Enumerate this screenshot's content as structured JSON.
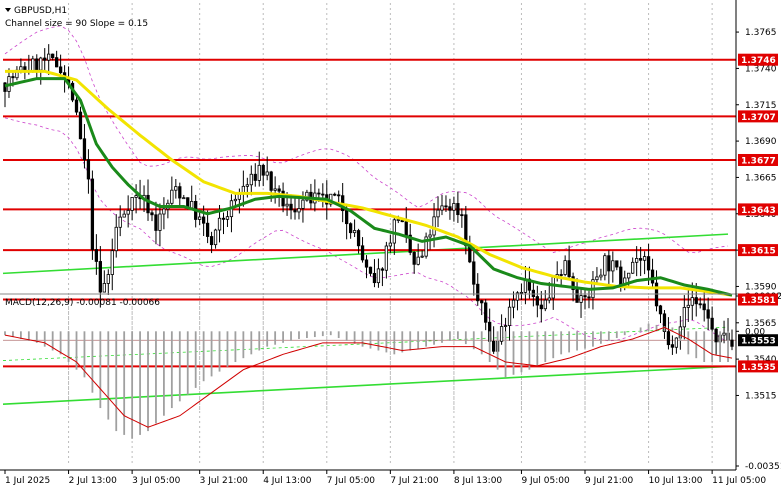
{
  "header": {
    "symbol": "GBPUSD,H1",
    "channel": "Channel size = 90 Slope = 0.15"
  },
  "colors": {
    "level_line": "#e00000",
    "level_label_bg": "#e00000",
    "price_label_bg": "#000000",
    "ma_fast": "#1a8a1a",
    "ma_slow": "#f2e400",
    "channel": "#33dd33",
    "envelope": "#cc44cc",
    "macd_signal": "#d00000",
    "macd_hist": "#a0a0a0",
    "grid": "#bcbcbc"
  },
  "chart_data": [
    {
      "type": "candlestick",
      "title": "GBPUSD,H1",
      "ylim": [
        1.3505,
        1.3785
      ],
      "y_ticks": [
        "1.3765",
        "1.3740",
        "1.3715",
        "1.3690",
        "1.3665",
        "1.3640",
        "1.3615",
        "1.3590",
        "1.3565",
        "1.3540",
        "1.3515"
      ],
      "x_ticks": [
        "1 Jul 2025",
        "2 Jul 13:00",
        "3 Jul 05:00",
        "3 Jul 21:00",
        "4 Jul 13:00",
        "7 Jul 05:00",
        "7 Jul 21:00",
        "8 Jul 13:00",
        "9 Jul 05:00",
        "9 Jul 21:00",
        "10 Jul 13:00",
        "11 Jul 05:00"
      ],
      "levels": [
        "1.3746",
        "1.3707",
        "1.3677",
        "1.3643",
        "1.3615",
        "1.3581",
        "1.3535"
      ],
      "current_price": "1.3553",
      "grid": true,
      "price_path": [
        [
          0,
          1.373
        ],
        [
          5,
          1.374
        ],
        [
          10,
          1.3745
        ],
        [
          14,
          1.3742
        ],
        [
          17,
          1.372
        ],
        [
          19,
          1.369
        ],
        [
          21,
          1.366
        ],
        [
          22,
          1.362
        ],
        [
          24,
          1.3585
        ],
        [
          26,
          1.3598
        ],
        [
          28,
          1.363
        ],
        [
          31,
          1.3648
        ],
        [
          34,
          1.3653
        ],
        [
          36,
          1.3645
        ],
        [
          38,
          1.3632
        ],
        [
          40,
          1.3642
        ],
        [
          43,
          1.3658
        ],
        [
          46,
          1.3648
        ],
        [
          48,
          1.364
        ],
        [
          50,
          1.363
        ],
        [
          52,
          1.3618
        ],
        [
          54,
          1.3633
        ],
        [
          57,
          1.3645
        ],
        [
          60,
          1.3658
        ],
        [
          62,
          1.3662
        ],
        [
          64,
          1.3672
        ],
        [
          66,
          1.3666
        ],
        [
          68,
          1.3652
        ],
        [
          70,
          1.3648
        ],
        [
          72,
          1.364
        ],
        [
          74,
          1.3648
        ],
        [
          77,
          1.365
        ],
        [
          80,
          1.3648
        ],
        [
          83,
          1.365
        ],
        [
          85,
          1.3645
        ],
        [
          87,
          1.3632
        ],
        [
          89,
          1.3618
        ],
        [
          91,
          1.36
        ],
        [
          93,
          1.359
        ],
        [
          95,
          1.3606
        ],
        [
          97,
          1.3625
        ],
        [
          99,
          1.364
        ],
        [
          101,
          1.362
        ],
        [
          103,
          1.3605
        ],
        [
          105,
          1.361
        ],
        [
          107,
          1.3628
        ],
        [
          109,
          1.364
        ],
        [
          111,
          1.3646
        ],
        [
          113,
          1.3645
        ],
        [
          115,
          1.364
        ],
        [
          117,
          1.3605
        ],
        [
          119,
          1.358
        ],
        [
          121,
          1.3566
        ],
        [
          123,
          1.3545
        ],
        [
          125,
          1.356
        ],
        [
          127,
          1.3578
        ],
        [
          129,
          1.3588
        ],
        [
          131,
          1.3593
        ],
        [
          133,
          1.358
        ],
        [
          135,
          1.3572
        ],
        [
          137,
          1.3585
        ],
        [
          139,
          1.3598
        ],
        [
          141,
          1.3606
        ],
        [
          143,
          1.3592
        ],
        [
          145,
          1.3578
        ],
        [
          147,
          1.3585
        ],
        [
          149,
          1.3598
        ],
        [
          151,
          1.3608
        ],
        [
          153,
          1.3603
        ],
        [
          155,
          1.3595
        ],
        [
          157,
          1.3605
        ],
        [
          159,
          1.361
        ],
        [
          161,
          1.3605
        ],
        [
          163,
          1.359
        ],
        [
          165,
          1.3568
        ],
        [
          167,
          1.3548
        ],
        [
          169,
          1.356
        ],
        [
          171,
          1.3572
        ],
        [
          173,
          1.3582
        ],
        [
          175,
          1.3578
        ],
        [
          177,
          1.357
        ],
        [
          179,
          1.3548
        ],
        [
          181,
          1.3555
        ],
        [
          183,
          1.3553
        ]
      ],
      "ma_fast_path": [
        [
          0,
          1.3728
        ],
        [
          8,
          1.3733
        ],
        [
          15,
          1.3733
        ],
        [
          19,
          1.3718
        ],
        [
          23,
          1.3688
        ],
        [
          27,
          1.3672
        ],
        [
          31,
          1.366
        ],
        [
          35,
          1.365
        ],
        [
          39,
          1.3645
        ],
        [
          45,
          1.3645
        ],
        [
          51,
          1.364
        ],
        [
          57,
          1.3644
        ],
        [
          63,
          1.365
        ],
        [
          69,
          1.3652
        ],
        [
          75,
          1.3651
        ],
        [
          81,
          1.365
        ],
        [
          87,
          1.3642
        ],
        [
          93,
          1.363
        ],
        [
          99,
          1.3626
        ],
        [
          105,
          1.3621
        ],
        [
          111,
          1.3624
        ],
        [
          117,
          1.3618
        ],
        [
          123,
          1.3602
        ],
        [
          129,
          1.3596
        ],
        [
          135,
          1.3592
        ],
        [
          141,
          1.359
        ],
        [
          147,
          1.3588
        ],
        [
          153,
          1.3589
        ],
        [
          159,
          1.3594
        ],
        [
          165,
          1.3596
        ],
        [
          171,
          1.3591
        ],
        [
          177,
          1.3588
        ],
        [
          183,
          1.3584
        ]
      ],
      "ma_slow_path": [
        [
          0,
          1.3738
        ],
        [
          10,
          1.3738
        ],
        [
          18,
          1.3732
        ],
        [
          26,
          1.3712
        ],
        [
          34,
          1.3694
        ],
        [
          42,
          1.3677
        ],
        [
          50,
          1.3662
        ],
        [
          58,
          1.3654
        ],
        [
          66,
          1.3654
        ],
        [
          74,
          1.3652
        ],
        [
          82,
          1.3648
        ],
        [
          90,
          1.3644
        ],
        [
          98,
          1.3638
        ],
        [
          106,
          1.3632
        ],
        [
          114,
          1.3624
        ],
        [
          122,
          1.3612
        ],
        [
          130,
          1.3603
        ],
        [
          138,
          1.3597
        ],
        [
          146,
          1.3593
        ],
        [
          154,
          1.359
        ],
        [
          162,
          1.3589
        ],
        [
          170,
          1.3589
        ],
        [
          178,
          1.3586
        ],
        [
          183,
          1.3584
        ]
      ]
    },
    {
      "type": "bar",
      "title": "MACD(12,26,9) -0.00081 -0.00066",
      "ylim": [
        -0.00351,
        0.00092
      ],
      "y_ticks": [
        "0.00092",
        "0.00",
        "-0.00351"
      ],
      "hist": [
        [
          0,
          -0.0001
        ],
        [
          8,
          -0.0003
        ],
        [
          14,
          -0.0006
        ],
        [
          20,
          -0.0012
        ],
        [
          24,
          -0.002
        ],
        [
          28,
          -0.0026
        ],
        [
          32,
          -0.0028
        ],
        [
          36,
          -0.0026
        ],
        [
          42,
          -0.002
        ],
        [
          50,
          -0.0013
        ],
        [
          58,
          -0.0008
        ],
        [
          66,
          -0.0004
        ],
        [
          74,
          -0.0002
        ],
        [
          82,
          -0.0001
        ],
        [
          90,
          -0.0004
        ],
        [
          98,
          -0.0006
        ],
        [
          106,
          -0.0004
        ],
        [
          114,
          -0.0002
        ],
        [
          120,
          -0.0006
        ],
        [
          126,
          -0.0012
        ],
        [
          132,
          -0.001
        ],
        [
          140,
          -0.0006
        ],
        [
          148,
          -0.0004
        ],
        [
          156,
          -0.0001
        ],
        [
          162,
          0.0002
        ],
        [
          168,
          0.0001
        ],
        [
          172,
          -0.0006
        ],
        [
          176,
          -0.0008
        ],
        [
          180,
          -0.0008
        ],
        [
          183,
          -0.0008
        ]
      ],
      "signal": [
        [
          0,
          -0.0001
        ],
        [
          10,
          -0.0003
        ],
        [
          18,
          -0.0008
        ],
        [
          24,
          -0.0015
        ],
        [
          30,
          -0.0022
        ],
        [
          36,
          -0.0025
        ],
        [
          44,
          -0.0022
        ],
        [
          52,
          -0.0016
        ],
        [
          60,
          -0.001
        ],
        [
          70,
          -0.0006
        ],
        [
          80,
          -0.0003
        ],
        [
          90,
          -0.0003
        ],
        [
          100,
          -0.0005
        ],
        [
          110,
          -0.0004
        ],
        [
          118,
          -0.0004
        ],
        [
          126,
          -0.0008
        ],
        [
          134,
          -0.0009
        ],
        [
          142,
          -0.0007
        ],
        [
          150,
          -0.0004
        ],
        [
          158,
          -0.0002
        ],
        [
          166,
          0.0001
        ],
        [
          172,
          -0.0002
        ],
        [
          178,
          -0.0006
        ],
        [
          183,
          -0.0007
        ]
      ]
    }
  ]
}
